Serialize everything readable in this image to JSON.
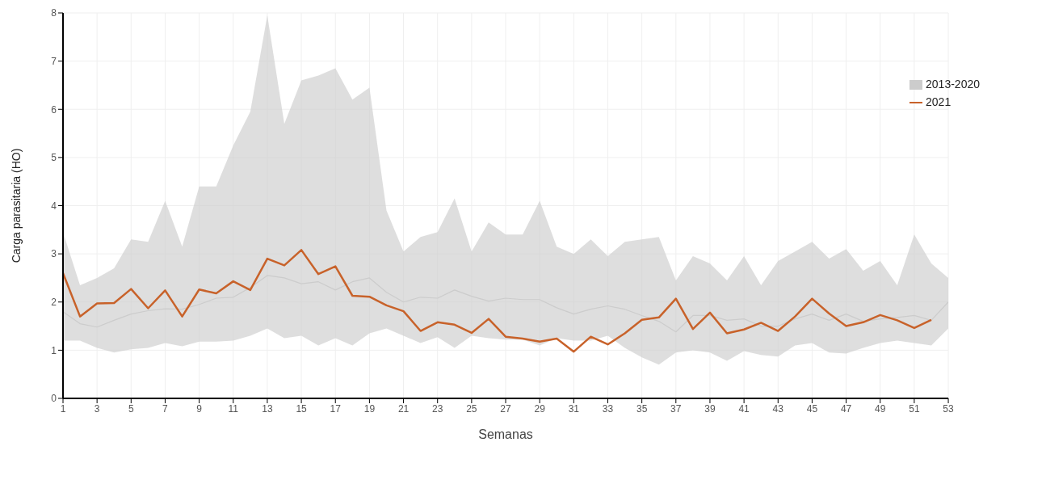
{
  "chart_data": {
    "type": "line",
    "xlabel": "Semanas",
    "ylabel": "Carga parasitaria (HO)",
    "x": [
      1,
      2,
      3,
      4,
      5,
      6,
      7,
      8,
      9,
      10,
      11,
      12,
      13,
      14,
      15,
      16,
      17,
      18,
      19,
      20,
      21,
      22,
      23,
      24,
      25,
      26,
      27,
      28,
      29,
      30,
      31,
      32,
      33,
      34,
      35,
      36,
      37,
      38,
      39,
      40,
      41,
      42,
      43,
      44,
      45,
      46,
      47,
      48,
      49,
      50,
      51,
      52,
      53
    ],
    "xlim": [
      1,
      53
    ],
    "xticks": [
      1,
      3,
      5,
      7,
      9,
      11,
      13,
      15,
      17,
      19,
      21,
      23,
      25,
      27,
      29,
      31,
      33,
      35,
      37,
      39,
      41,
      43,
      45,
      47,
      49,
      51,
      53
    ],
    "ylim": [
      0,
      8
    ],
    "yticks": [
      0,
      1,
      2,
      3,
      4,
      5,
      6,
      7,
      8
    ],
    "grid": true,
    "legend": "top right",
    "marker": "none",
    "line_style": "solid",
    "series": [
      {
        "name": "2013-2020",
        "color": "#cccccc",
        "values": [
          1.8,
          1.55,
          1.48,
          1.62,
          1.75,
          1.82,
          1.86,
          1.85,
          1.95,
          2.08,
          2.1,
          2.3,
          2.55,
          2.5,
          2.38,
          2.42,
          2.25,
          2.42,
          2.5,
          2.2,
          2.0,
          2.1,
          2.08,
          2.25,
          2.12,
          2.02,
          2.08,
          2.05,
          2.05,
          1.88,
          1.75,
          1.85,
          1.92,
          1.85,
          1.72,
          1.6,
          1.38,
          1.72,
          1.72,
          1.62,
          1.65,
          1.5,
          1.5,
          1.65,
          1.75,
          1.62,
          1.75,
          1.6,
          1.65,
          1.68,
          1.72,
          1.62,
          2.0
        ],
        "lower": [
          1.2,
          1.2,
          1.05,
          0.95,
          1.02,
          1.05,
          1.15,
          1.08,
          1.18,
          1.18,
          1.2,
          1.3,
          1.45,
          1.25,
          1.3,
          1.1,
          1.25,
          1.1,
          1.35,
          1.45,
          1.3,
          1.15,
          1.27,
          1.05,
          1.3,
          1.25,
          1.22,
          1.22,
          1.1,
          1.25,
          1.2,
          1.2,
          1.3,
          1.05,
          0.85,
          0.7,
          0.95,
          1.0,
          0.95,
          0.78,
          0.98,
          0.9,
          0.87,
          1.1,
          1.15,
          0.95,
          0.93,
          1.05,
          1.15,
          1.2,
          1.15,
          1.1,
          1.45
        ],
        "upper": [
          3.45,
          2.35,
          2.5,
          2.7,
          3.3,
          3.25,
          4.1,
          3.15,
          4.4,
          4.4,
          5.25,
          5.95,
          7.95,
          5.7,
          6.6,
          6.7,
          6.85,
          6.2,
          6.45,
          3.9,
          3.05,
          3.35,
          3.45,
          4.15,
          3.05,
          3.65,
          3.4,
          3.4,
          4.1,
          3.15,
          3.0,
          3.3,
          2.95,
          3.25,
          3.3,
          3.35,
          2.45,
          2.95,
          2.8,
          2.45,
          2.95,
          2.35,
          2.85,
          3.05,
          3.25,
          2.9,
          3.1,
          2.65,
          2.85,
          2.35,
          3.4,
          2.8,
          2.5
        ]
      },
      {
        "name": "2021",
        "color": "#c8622a",
        "values": [
          2.6,
          1.7,
          1.97,
          1.98,
          2.27,
          1.87,
          2.24,
          1.7,
          2.26,
          2.18,
          2.43,
          2.25,
          2.9,
          2.76,
          3.08,
          2.58,
          2.74,
          2.13,
          2.11,
          1.93,
          1.81,
          1.4,
          1.58,
          1.53,
          1.36,
          1.65,
          1.28,
          1.24,
          1.18,
          1.24,
          0.97,
          1.28,
          1.12,
          1.35,
          1.63,
          1.68,
          2.07,
          1.44,
          1.78,
          1.35,
          1.43,
          1.57,
          1.4,
          1.7,
          2.07,
          1.76,
          1.5,
          1.58,
          1.73,
          1.62,
          1.46,
          1.63,
          null
        ]
      }
    ]
  }
}
